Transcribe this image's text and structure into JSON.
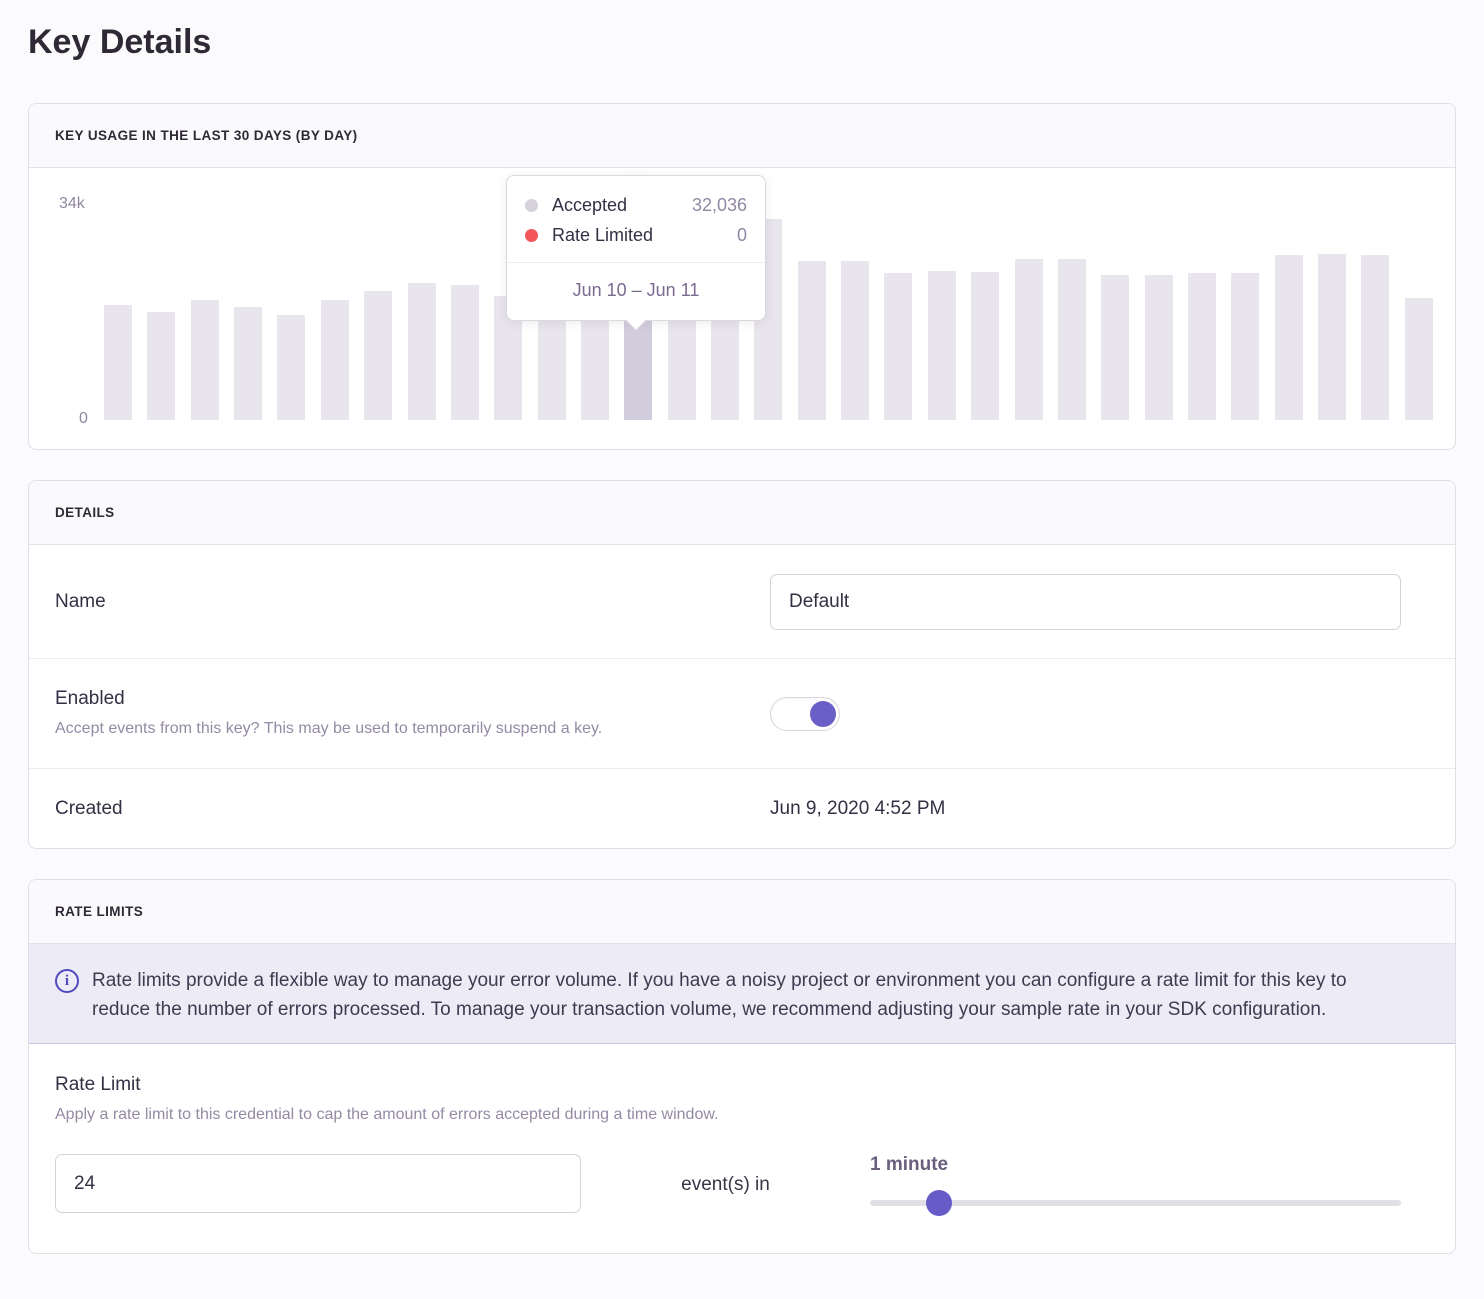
{
  "page": {
    "title": "Key Details"
  },
  "colors": {
    "accent_purple": "#6a5ec7",
    "bar_default": "#e8e5ec",
    "bar_hovered": "#d1cddc",
    "accepted_dot": "#d5d2dc",
    "rate_limited_dot": "#f2555a",
    "alert_background": "#ecebf6",
    "info_icon": "#5049bf"
  },
  "usage_panel": {
    "header": "KEY USAGE IN THE LAST 30 DAYS (BY DAY)",
    "y_axis": {
      "max_label": "34k",
      "min_label": "0"
    },
    "tooltip": {
      "rows": [
        {
          "label": "Accepted",
          "value": "32,036",
          "dot_color": "#d5d2dc"
        },
        {
          "label": "Rate Limited",
          "value": "0",
          "dot_color": "#f2555a"
        }
      ],
      "date_range": "Jun 10 – Jun 11"
    }
  },
  "chart_data": {
    "type": "bar",
    "title": "Key usage in the last 30 days (by day)",
    "ylabel": "",
    "xlabel": "",
    "ylim": [
      0,
      34000
    ],
    "grid": false,
    "legend_position": "tooltip",
    "hovered_index": 12,
    "hovered_range_label": "Jun 10 – Jun 11",
    "series": [
      {
        "name": "Accepted",
        "values": [
          18200,
          17100,
          19000,
          17900,
          16600,
          19000,
          20400,
          21700,
          21300,
          19600,
          20100,
          21800,
          32036,
          26000,
          26000,
          31800,
          25100,
          25100,
          23200,
          23600,
          23400,
          25500,
          25500,
          22900,
          22900,
          23200,
          23200,
          26100,
          26300,
          26100,
          19300
        ]
      },
      {
        "name": "Rate Limited",
        "values": [
          0,
          0,
          0,
          0,
          0,
          0,
          0,
          0,
          0,
          0,
          0,
          0,
          0,
          0,
          0,
          0,
          0,
          0,
          0,
          0,
          0,
          0,
          0,
          0,
          0,
          0,
          0,
          0,
          0,
          0,
          0
        ]
      }
    ]
  },
  "details_panel": {
    "header": "DETAILS",
    "name_row": {
      "label": "Name",
      "value": "Default"
    },
    "enabled_row": {
      "label": "Enabled",
      "help": "Accept events from this key? This may be used to temporarily suspend a key.",
      "enabled": true
    },
    "created_row": {
      "label": "Created",
      "value": "Jun 9, 2020 4:52 PM"
    }
  },
  "rate_limits_panel": {
    "header": "RATE LIMITS",
    "alert_text": "Rate limits provide a flexible way to manage your error volume. If you have a noisy project or environment you can configure a rate limit for this key to reduce the number of errors processed. To manage your transaction volume, we recommend adjusting your sample rate in your SDK configuration.",
    "rate_limit_row": {
      "label": "Rate Limit",
      "help": "Apply a rate limit to this credential to cap the amount of errors accepted during a time window.",
      "count_value": "24",
      "events_in_label": "event(s) in",
      "window_label": "1 minute",
      "slider_percent": 13
    }
  }
}
